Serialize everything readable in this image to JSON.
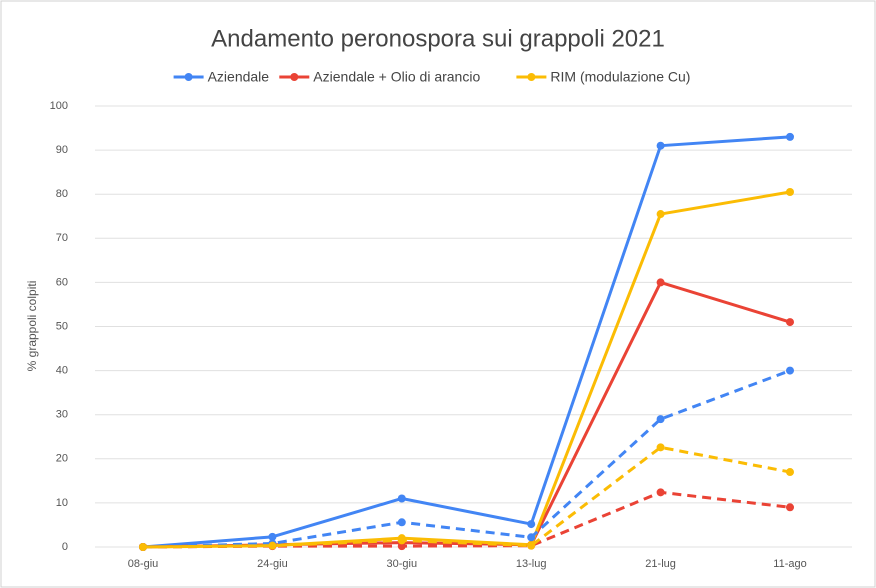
{
  "chart_data": {
    "type": "line",
    "title": "Andamento peronospora sui grappoli 2021",
    "y_label": "% grappoli colpiti",
    "categories": [
      "08-giu",
      "24-giu",
      "30-giu",
      "13-lug",
      "21-lug",
      "11-ago"
    ],
    "series": [
      {
        "name": "Aziendale",
        "color": "#4285f4",
        "values": [
          0,
          2.3,
          11,
          5.2,
          91,
          93
        ]
      },
      {
        "name": "Aziendale + Olio di arancio",
        "color": "#ea4335",
        "values": [
          0,
          0.5,
          1,
          0.5,
          60,
          51
        ]
      },
      {
        "name": "RIM (modulazione Cu)",
        "color": "#fbbc04",
        "values": [
          0,
          0.3,
          2,
          0.5,
          75.5,
          80.5
        ]
      },
      {
        "color": "#4285f4",
        "dashed": true,
        "values": [
          0,
          0.8,
          5.6,
          2.2,
          29,
          40
        ]
      },
      {
        "color": "#ea4335",
        "dashed": true,
        "values": [
          0,
          0.2,
          0.2,
          0.3,
          12.4,
          9
        ]
      },
      {
        "color": "#fbbc04",
        "dashed": true,
        "values": [
          0,
          0.3,
          1.5,
          0.3,
          22.6,
          17
        ]
      }
    ],
    "ylim": [
      0,
      100
    ],
    "yticks": [
      0,
      10,
      20,
      30,
      40,
      50,
      60,
      70,
      80,
      90,
      100
    ],
    "grid": true,
    "legend": "top"
  }
}
